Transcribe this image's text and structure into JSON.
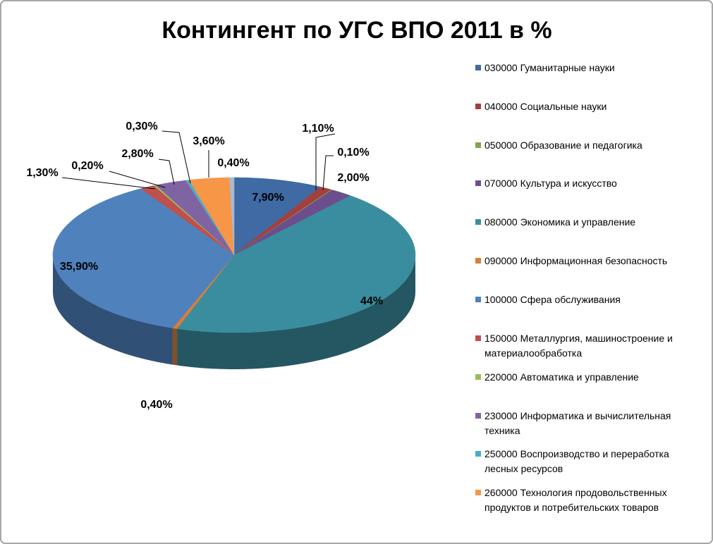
{
  "chart_data": {
    "type": "pie3d",
    "title": "Контингент по УГС ВПО 2011 в %",
    "categories": [
      "030000 Гуманитарные науки",
      "040000 Социальные науки",
      "050000 Образование и педагогика",
      "070000 Культура и искусство",
      "080000 Экономика и управление",
      "090000 Информационная безопасность",
      "100000 Сфера обслуживания",
      "150000 Металлургия, машиностроение и материалообработка",
      "220000 Автоматика и управление",
      "230000 Информатика и вычислительная техника",
      "250000 Воспроизводство и переработка лесных ресурсов",
      "260000 Технология продовольственных продуктов и потребительских товаров",
      null
    ],
    "values": [
      7.9,
      1.1,
      0.1,
      2.0,
      44,
      0.4,
      35.9,
      1.3,
      0.2,
      2.8,
      0.3,
      3.6,
      0.4
    ],
    "value_labels": [
      "7,90%",
      "1,10%",
      "0,10%",
      "2,00%",
      "44%",
      "0,40%",
      "35,90%",
      "1,30%",
      "0,20%",
      "2,80%",
      "0,30%",
      "3,60%",
      "0,40%"
    ],
    "colors": [
      "#3F6AA3",
      "#A3403D",
      "#84A44A",
      "#6C4E8E",
      "#3A8D9E",
      "#DA7D35",
      "#4F81BD",
      "#C0504D",
      "#9BBB59",
      "#8064A2",
      "#4BACC6",
      "#F79646",
      "#A9B9D3"
    ]
  }
}
